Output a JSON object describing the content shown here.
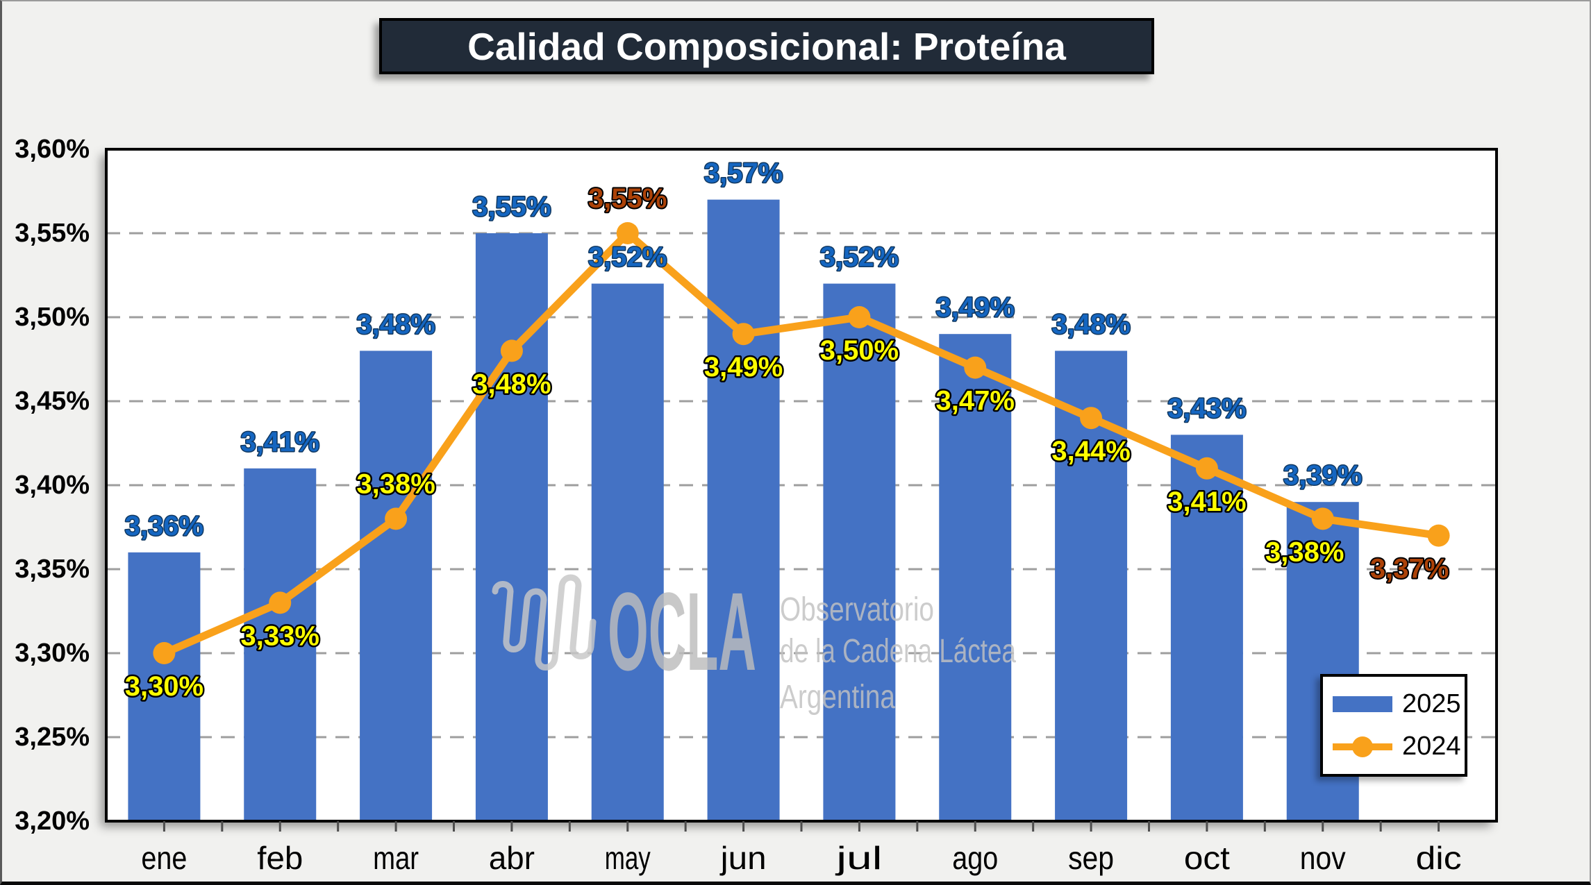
{
  "title": "Calidad Composicional: Proteína",
  "watermark": {
    "brand": "OCLA",
    "line1": "Observatorio",
    "line2": "de la Cadena Láctea",
    "line3": "Argentina"
  },
  "legend": {
    "position": "bottom-right",
    "items": [
      {
        "label": "2025",
        "marker": "bar"
      },
      {
        "label": "2024",
        "marker": "line"
      }
    ]
  },
  "colors": {
    "bar_blue": "#4472C4",
    "line_orange": "#F9A11B",
    "label_blue": "#1566C1",
    "label_yellow": "#FFFF00",
    "label_brown": "#AC4208",
    "title_bg": "#212B38",
    "title_text": "#FFFFFF",
    "gridline": "#9E9E9E",
    "plot_bg": "#FFFFFF",
    "page_bg": "#F1F1EF"
  },
  "chart_data": {
    "type": "bar+line combo",
    "title": "Calidad Composicional: Proteína",
    "categories": [
      "ene",
      "feb",
      "mar",
      "abr",
      "may",
      "jun",
      "jul",
      "ago",
      "sep",
      "oct",
      "nov",
      "dic"
    ],
    "y_axis": {
      "min": 3.2,
      "max": 3.6,
      "step": 0.05,
      "tick_labels": [
        "3,60%",
        "3,55%",
        "3,50%",
        "3,45%",
        "3,40%",
        "3,35%",
        "3,30%",
        "3,25%",
        "3,20%"
      ],
      "grid": "dashed"
    },
    "series": [
      {
        "name": "2025",
        "type": "bar",
        "color": "#4472C4",
        "values": [
          3.36,
          3.41,
          3.48,
          3.55,
          3.52,
          3.57,
          3.52,
          3.49,
          3.48,
          3.43,
          3.39,
          null
        ],
        "labels": [
          "3,36%",
          "3,41%",
          "3,48%",
          "3,55%",
          "3,52%",
          "3,57%",
          "3,52%",
          "3,49%",
          "3,48%",
          "3,43%",
          "3,39%",
          null
        ]
      },
      {
        "name": "2024",
        "type": "line",
        "color": "#F9A11B",
        "values": [
          3.3,
          3.33,
          3.38,
          3.48,
          3.55,
          3.49,
          3.5,
          3.47,
          3.44,
          3.41,
          3.38,
          3.37
        ],
        "labels": [
          "3,30%",
          "3,33%",
          "3,38%",
          "3,48%",
          "3,55%",
          "3,49%",
          "3,50%",
          "3,47%",
          "3,44%",
          "3,41%",
          "3,38%",
          "3,37%"
        ],
        "label_side": [
          "below",
          "below",
          "above",
          "below",
          "above",
          "below",
          "below",
          "below",
          "below",
          "below",
          "below",
          "below"
        ],
        "label_style": [
          "yellow",
          "yellow",
          "yellow",
          "yellow",
          "brown",
          "yellow",
          "yellow",
          "yellow",
          "yellow",
          "yellow",
          "yellow",
          "brown"
        ],
        "label_dx": [
          0,
          0,
          0,
          0,
          0,
          0,
          0,
          0,
          0,
          0,
          -26,
          -42
        ]
      }
    ]
  }
}
